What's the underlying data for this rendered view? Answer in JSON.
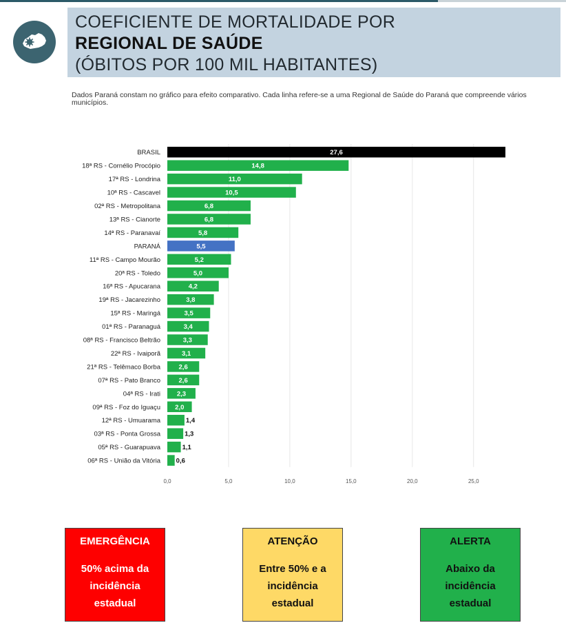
{
  "header": {
    "title_line1": "COEFICIENTE DE MORTALIDADE POR",
    "title_line2": "REGIONAL DE SAÚDE",
    "title_line3": "(ÓBITOS POR 100 MIL HABITANTES)",
    "note": "Dados Paraná constam no gráfico para efeito comparativo. Cada linha refere-se a uma Regional de Saúde do Paraná que compreende vários municípios."
  },
  "logo": {
    "icon": "parana-state-map-icon"
  },
  "colors": {
    "green": "#21b04b",
    "black": "#000000",
    "blue": "#4472c4",
    "grid": "#e6e6e6",
    "emergencia": "#fe0000",
    "atencao": "#fed966",
    "alerta": "#21b04b"
  },
  "chart_data": {
    "type": "bar",
    "orientation": "horizontal",
    "title": "",
    "xlabel": "",
    "ylabel": "",
    "xlim": [
      0,
      27.6
    ],
    "xticks": [
      "0,0",
      "5,0",
      "10,0",
      "15,0",
      "20,0",
      "25,0"
    ],
    "tick_values": [
      0,
      5,
      10,
      15,
      20,
      25
    ],
    "grid": true,
    "categories": [
      "BRASIL",
      "18ª RS - Cornélio Procópio",
      "17ª RS - Londrina",
      "10ª RS - Cascavel",
      "02ª RS - Metropolitana",
      "13ª RS - Cianorte",
      "14ª RS - Paranavaí",
      "PARANÁ",
      "11ª RS - Campo Mourão",
      "20ª RS - Toledo",
      "16ª RS - Apucarana",
      "19ª RS - Jacarezinho",
      "15ª RS - Maringá",
      "01ª RS - Paranaguá",
      "08ª RS - Francisco Beltrão",
      "22ª RS - Ivaiporã",
      "21ª RS - Telêmaco Borba",
      "07ª RS - Pato Branco",
      "04ª RS - Irati",
      "09ª RS - Foz do Iguaçu",
      "12ª RS - Umuarama",
      "03ª RS - Ponta Grossa",
      "05ª RS - Guarapuava",
      "06ª RS - União da Vitória"
    ],
    "values": [
      27.6,
      14.8,
      11.0,
      10.5,
      6.8,
      6.8,
      5.8,
      5.5,
      5.2,
      5.0,
      4.2,
      3.8,
      3.5,
      3.4,
      3.3,
      3.1,
      2.6,
      2.6,
      2.3,
      2.0,
      1.4,
      1.3,
      1.1,
      0.6
    ],
    "labels": [
      "27,6",
      "14,8",
      "11,0",
      "10,5",
      "6,8",
      "6,8",
      "5,8",
      "5,5",
      "5,2",
      "5,0",
      "4,2",
      "3,8",
      "3,5",
      "3,4",
      "3,3",
      "3,1",
      "2,6",
      "2,6",
      "2,3",
      "2,0",
      "1,4",
      "1,3",
      "1,1",
      "0,6"
    ],
    "bar_colors": [
      "black",
      "green",
      "green",
      "green",
      "green",
      "green",
      "green",
      "blue",
      "green",
      "green",
      "green",
      "green",
      "green",
      "green",
      "green",
      "green",
      "green",
      "green",
      "green",
      "green",
      "green",
      "green",
      "green",
      "green"
    ]
  },
  "legend": {
    "emergencia": {
      "title": "EMERGÊNCIA",
      "desc": "50% acima da incidência estadual"
    },
    "atencao": {
      "title": "ATENÇÃO",
      "desc": "Entre 50% e a incidência estadual"
    },
    "alerta": {
      "title": "ALERTA",
      "desc": "Abaixo da incidência estadual"
    }
  }
}
